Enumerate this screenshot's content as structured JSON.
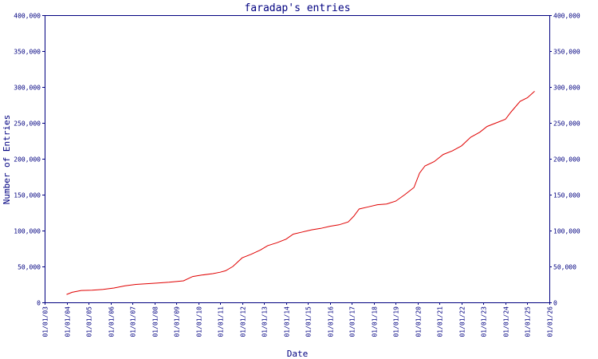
{
  "colors": {
    "axis": "#000080",
    "line": "#e00000",
    "text": "#000080",
    "background": "#ffffff"
  },
  "chart_data": {
    "type": "line",
    "title": "faradap's entries",
    "xlabel": "Date",
    "ylabel": "Number of Entries",
    "xlim": [
      "2003-01-01",
      "2026-01-01"
    ],
    "ylim": [
      0,
      400000
    ],
    "grid": false,
    "x_tick_labels": [
      "01/01/03",
      "01/01/04",
      "01/01/05",
      "01/01/06",
      "01/01/07",
      "01/01/08",
      "01/01/09",
      "01/01/10",
      "01/01/11",
      "01/01/12",
      "01/01/13",
      "01/01/14",
      "01/01/15",
      "01/01/16",
      "01/01/17",
      "01/01/18",
      "01/01/19",
      "01/01/20",
      "01/01/21",
      "01/01/22",
      "01/01/23",
      "01/01/24",
      "01/01/25",
      "01/01/26"
    ],
    "y_ticks": [
      0,
      50000,
      100000,
      150000,
      200000,
      250000,
      300000,
      350000,
      400000
    ],
    "y_tick_labels": [
      "0",
      "50,000",
      "100,000",
      "150,000",
      "200,000",
      "250,000",
      "300,000",
      "350,000",
      "400,000"
    ],
    "series": [
      {
        "x": [
          "2004-01-01",
          "2004-04-01",
          "2004-09-01",
          "2005-03-01",
          "2005-09-01",
          "2006-03-01",
          "2006-09-01",
          "2007-03-01",
          "2007-09-01",
          "2008-03-01",
          "2008-09-01",
          "2009-01-01",
          "2009-05-01",
          "2009-10-01",
          "2010-03-01",
          "2010-09-01",
          "2011-01-01",
          "2011-04-01",
          "2011-08-01",
          "2012-01-01",
          "2012-06-01",
          "2012-11-01",
          "2013-03-01",
          "2013-08-01",
          "2014-01-01",
          "2014-05-01",
          "2014-10-01",
          "2015-03-01",
          "2015-08-01",
          "2016-01-01",
          "2016-06-01",
          "2016-11-01",
          "2017-02-01",
          "2017-05-01",
          "2017-10-01",
          "2018-03-01",
          "2018-08-01",
          "2019-01-01",
          "2019-06-01",
          "2019-11-01",
          "2020-02-01",
          "2020-05-01",
          "2020-10-01",
          "2021-03-01",
          "2021-08-01",
          "2022-01-01",
          "2022-06-01",
          "2022-11-01",
          "2023-03-01",
          "2023-08-01",
          "2024-01-01",
          "2024-04-01",
          "2024-09-01",
          "2025-01-01",
          "2025-05-01"
        ],
        "values": [
          11000,
          14000,
          16500,
          17000,
          18000,
          20000,
          23000,
          25000,
          26000,
          27000,
          28000,
          29000,
          30000,
          36000,
          38000,
          40000,
          42000,
          44000,
          50000,
          62000,
          67000,
          73000,
          79000,
          83000,
          88000,
          95000,
          98000,
          101000,
          103000,
          106000,
          108000,
          112000,
          120000,
          130000,
          133000,
          136000,
          137000,
          141000,
          150000,
          160000,
          180000,
          190000,
          196000,
          206000,
          211000,
          218000,
          230000,
          237000,
          245000,
          250000,
          255000,
          265000,
          280000,
          285000,
          294000
        ]
      }
    ]
  }
}
